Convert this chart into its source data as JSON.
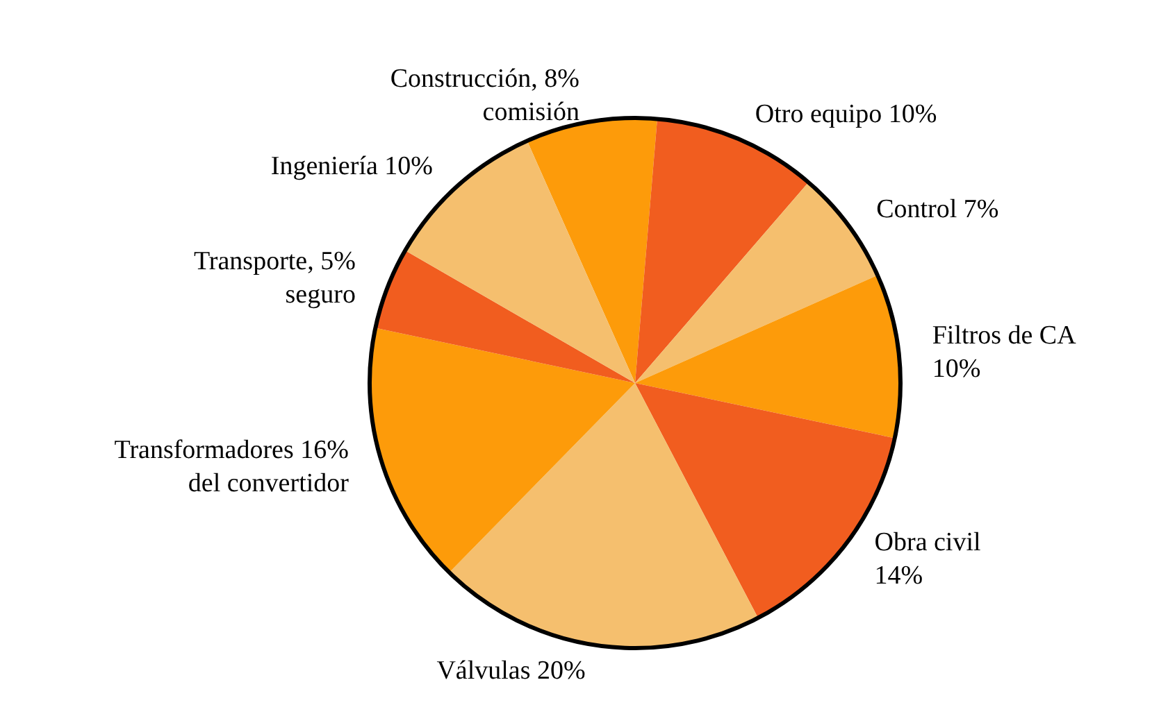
{
  "chart_data": {
    "type": "pie",
    "categories": [
      "Construcción, 8%\ncomisión",
      "Otro equipo 10%",
      "Control 7%",
      "Filtros de CA\n10%",
      "Obra civil\n14%",
      "Válvulas 20%",
      "Transformadores 16%\ndel convertidor",
      "Transporte, 5%\nseguro",
      "Ingeniería 10%"
    ],
    "values": [
      8,
      10,
      7,
      10,
      14,
      20,
      16,
      5,
      10
    ],
    "colors": [
      "#fd9b0a",
      "#f15d1f",
      "#f5bf6e",
      "#fd9b0a",
      "#f15d1f",
      "#f5bf6e",
      "#fd9b0a",
      "#f15d1f",
      "#f5bf6e"
    ],
    "legend": false
  }
}
